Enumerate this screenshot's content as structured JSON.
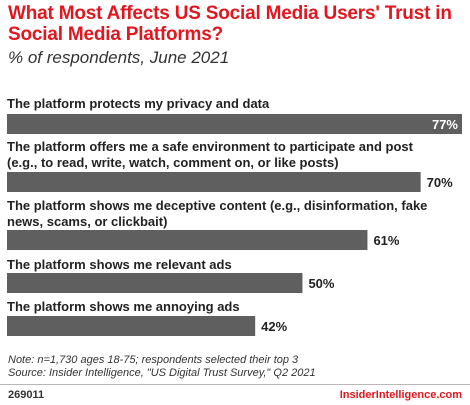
{
  "chart_data": {
    "type": "bar",
    "orientation": "horizontal",
    "title": "What Most Affects US Social Media Users' Trust in Social Media Platforms?",
    "subtitle": "% of respondents, June 2021",
    "categories": [
      "The platform protects my privacy and data",
      "The platform offers me a safe environment to participate and post (e.g., to read, write, watch, comment on, or like posts)",
      "The platform shows me deceptive content (e.g., disinformation, fake news, scams, or clickbait)",
      "The platform shows me relevant ads",
      "The platform shows me annoying ads"
    ],
    "values": [
      77,
      70,
      61,
      50,
      42
    ],
    "value_labels": [
      "77%",
      "70%",
      "61%",
      "50%",
      "42%"
    ],
    "xlim": [
      0,
      77
    ],
    "bar_color": "#5f5f5f",
    "grid": false,
    "legend": "none"
  },
  "notes": {
    "note": "Note: n=1,730 ages 18-75; respondents selected their top 3",
    "source": "Source: Insider Intelligence, \"US Digital Trust Survey,\" Q2 2021"
  },
  "footer": {
    "chart_id": "269011",
    "brand": "InsiderIntelligence.com"
  },
  "colors": {
    "title": "#e2161f",
    "bar": "#5f5f5f",
    "label_inside": "#ffffff",
    "label_outside": "#222222"
  }
}
